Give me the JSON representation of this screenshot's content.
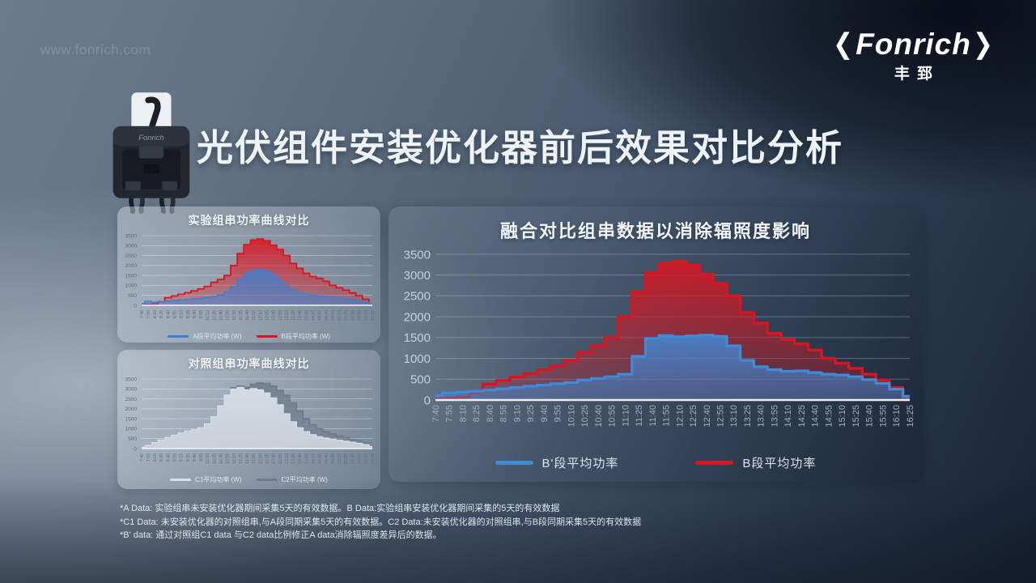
{
  "watermark": "www.fonrich.com",
  "logo": {
    "left_bracket": "❮",
    "name": "Fonrich",
    "right_bracket": "❯",
    "cn": "丰郅"
  },
  "title": "光伏组件安装优化器前后效果对比分析",
  "device_label": "Fonrich",
  "footnotes": [
    "*A Data: 实验组串未安装优化器期间采集5天的有效数据。B Data:实验组串安装优化器期间采集的5天的有效数据",
    "*C1 Data: 未安装优化器的对照组串,与A段同期采集5天的有效数据。C2 Data:未安装优化器的对照组串,与B段同期采集5天的有效数据",
    "*B' data: 通过对照组C1 data 与C2 data比例修正A data消除辐照度差异后的数据。"
  ],
  "chart_data": [
    {
      "id": "experimental",
      "type": "area",
      "title": "实验组串功率曲线对比",
      "xlabel": "",
      "ylabel": "",
      "ylim": [
        0,
        3500
      ],
      "yticks": [
        0,
        500,
        1000,
        1500,
        2000,
        2500,
        3000,
        3500
      ],
      "grid": true,
      "legend_position": "bottom",
      "categories": [
        "7:40",
        "7:55",
        "8:10",
        "8:25",
        "8:40",
        "8:55",
        "9:10",
        "9:25",
        "9:40",
        "9:55",
        "10:10",
        "10:25",
        "10:40",
        "10:55",
        "11:10",
        "11:25",
        "11:40",
        "11:55",
        "12:10",
        "12:25",
        "12:40",
        "12:55",
        "13:10",
        "13:25",
        "13:40",
        "13:55",
        "14:10",
        "14:25",
        "14:40",
        "14:55",
        "15:10",
        "15:25",
        "15:40",
        "15:55",
        "16:10",
        "16:25"
      ],
      "series": [
        {
          "name": "A段平均功率 (W)",
          "color": "#3e7fd0",
          "values": [
            80,
            200,
            160,
            180,
            210,
            240,
            270,
            290,
            320,
            350,
            390,
            440,
            520,
            680,
            950,
            1300,
            1600,
            1750,
            1800,
            1730,
            1550,
            1250,
            980,
            780,
            640,
            560,
            500,
            470,
            440,
            400,
            370,
            330,
            290,
            230,
            150,
            20
          ]
        },
        {
          "name": "B段平均功率 (W)",
          "color": "#e0121d",
          "values": [
            30,
            40,
            70,
            180,
            380,
            470,
            550,
            630,
            720,
            820,
            950,
            1150,
            1300,
            1500,
            2000,
            2600,
            3050,
            3280,
            3330,
            3240,
            3020,
            2800,
            2500,
            2100,
            1850,
            1600,
            1450,
            1350,
            1200,
            1000,
            880,
            760,
            620,
            480,
            300,
            20
          ]
        }
      ]
    },
    {
      "id": "control",
      "type": "area",
      "title": "对照组串功率曲线对比",
      "xlabel": "",
      "ylabel": "",
      "ylim": [
        0,
        3500
      ],
      "yticks": [
        0,
        500,
        1000,
        1500,
        2000,
        2500,
        3000,
        3500
      ],
      "grid": true,
      "legend_position": "bottom",
      "categories": [
        "7:40",
        "7:55",
        "8:10",
        "8:25",
        "8:40",
        "8:55",
        "9:10",
        "9:25",
        "9:40",
        "9:55",
        "10:10",
        "10:25",
        "10:40",
        "10:55",
        "11:10",
        "11:25",
        "11:40",
        "11:55",
        "12:10",
        "12:25",
        "12:40",
        "12:55",
        "13:10",
        "13:25",
        "13:40",
        "13:55",
        "14:10",
        "14:25",
        "14:40",
        "14:55",
        "15:10",
        "15:25",
        "15:40",
        "15:55",
        "16:10",
        "16:25"
      ],
      "series": [
        {
          "name": "C1平均功率 (W)",
          "color": "#d9e0e8",
          "values": [
            60,
            160,
            300,
            430,
            560,
            680,
            780,
            880,
            950,
            1050,
            1250,
            1600,
            2150,
            2700,
            3000,
            3080,
            2950,
            3020,
            2950,
            2800,
            2550,
            2200,
            1750,
            1350,
            1050,
            850,
            700,
            600,
            530,
            470,
            420,
            370,
            320,
            270,
            200,
            110
          ]
        },
        {
          "name": "C2平均功率 (W)",
          "color": "#6e7b8b",
          "values": [
            50,
            140,
            280,
            410,
            540,
            660,
            760,
            860,
            940,
            1030,
            1220,
            1550,
            2100,
            2680,
            3060,
            3140,
            3080,
            3240,
            3300,
            3280,
            3140,
            2950,
            2680,
            2300,
            1900,
            1500,
            1200,
            1000,
            850,
            740,
            640,
            550,
            460,
            380,
            280,
            150
          ]
        }
      ]
    },
    {
      "id": "fused",
      "type": "area",
      "title": "融合对比组串数据以消除辐照度影响",
      "xlabel": "",
      "ylabel": "",
      "ylim": [
        0,
        3500
      ],
      "yticks": [
        0,
        500,
        1000,
        1500,
        2000,
        2500,
        3000,
        3500
      ],
      "grid": true,
      "legend_position": "bottom",
      "categories": [
        "7:40",
        "7:55",
        "8:10",
        "8:25",
        "8:40",
        "8:55",
        "9:10",
        "9:25",
        "9:40",
        "9:55",
        "10:10",
        "10:25",
        "10:40",
        "10:55",
        "11:10",
        "11:25",
        "11:40",
        "11:55",
        "12:10",
        "12:25",
        "12:40",
        "12:55",
        "13:10",
        "13:25",
        "13:40",
        "13:55",
        "14:10",
        "14:25",
        "14:40",
        "14:55",
        "15:10",
        "15:25",
        "15:40",
        "15:55",
        "16:10",
        "16:25"
      ],
      "series": [
        {
          "name": "B'段平均功率",
          "color": "#3e8bd8",
          "values": [
            110,
            170,
            190,
            210,
            240,
            270,
            300,
            330,
            360,
            390,
            420,
            480,
            520,
            560,
            620,
            1050,
            1480,
            1550,
            1520,
            1540,
            1560,
            1530,
            1300,
            950,
            800,
            730,
            690,
            700,
            660,
            620,
            600,
            560,
            490,
            400,
            260,
            90
          ]
        },
        {
          "name": "B段平均功率",
          "color": "#d9151f",
          "values": [
            30,
            40,
            70,
            180,
            380,
            470,
            550,
            630,
            720,
            820,
            950,
            1150,
            1300,
            1500,
            2000,
            2600,
            3050,
            3280,
            3330,
            3240,
            3020,
            2800,
            2500,
            2100,
            1850,
            1600,
            1450,
            1350,
            1200,
            1000,
            880,
            760,
            620,
            480,
            300,
            20
          ]
        }
      ]
    }
  ]
}
